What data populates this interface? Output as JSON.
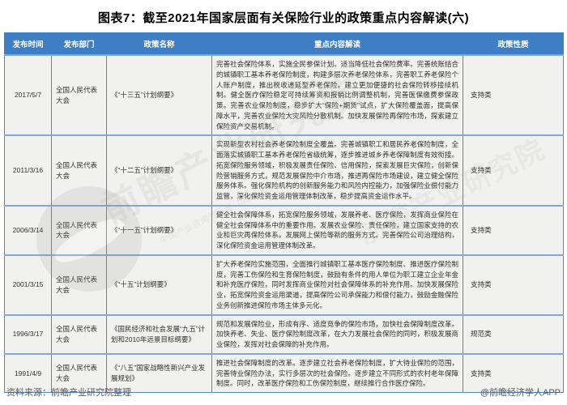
{
  "title": "图表7：截至2021年国家层面有关保险行业的政策重点内容解读(六)",
  "table": {
    "headers": [
      "发布时间",
      "发布部门",
      "政策名称",
      "重点内容解读",
      "政策性质"
    ],
    "rows": [
      {
        "date": "2017/5/7",
        "dept": "全国人民代表大会",
        "policy": "《“十三五”计划纲要》",
        "content": "完善社会保险体系，实施全民参保计划。适当降低社会保险费率。完善统账结合的城镇职工基本养老保险制度，构建多层次养老保险体系，完善职工养老保险个人账户制度，推出税收递延型养老保险。建立更加便捷的社会保险转移接续机制。健全医疗保险稳定可持续筹资和报销比例调整机制，完善医保缴费参保政策。完善农业保险制度，稳步扩大“保险+期货”试点，扩大保险覆盖面，提高保障水平，完善农业保险大灾风险分散机制。加快发展保险再保险市场，探索建立保险资产交易机制。",
        "nature": "支持类"
      },
      {
        "date": "2011/3/16",
        "dept": "全国人民代表大会",
        "policy": "《“十二五”计划纲要》",
        "content": "实现新型农村社会养老保险制度全覆盖。完善城镇职工和居民养老保险制度，全面落实城镇职工基本养老保险省级统筹，逐步推进城乡养老保障制度有效衔接。拓宽保险服务领域，积极发展责任保险、信用保险，探索发展巨灾保险，创新保险营销服务方式，规范发展保险中介市场，推进再保险市场建设，建立健全保险服务体系。强化保险机构的创新服务能力和风险内控能力，加强保险业偿付能力监管，深化保险资金运用管理体制改革，稳步提高资金运作水平。",
        "nature": "支持类"
      },
      {
        "date": "2006/3/14",
        "dept": "全国人民代表大会",
        "policy": "《“十一五”计划纲要》",
        "content": "健全社会保障体系，拓宽保险服务领域，发展养老、医疗保险，发挥商业保险在健全社会保障体系中的重要作用。发展农业保险、责任保险，建立国家支持的农业和巨灾再保险体系。发展网上保险等新的服务方式。完善保险公司治理结构，深化保险资金运用管理体制改革。",
        "nature": "支持类"
      },
      {
        "date": "2001/3/15",
        "dept": "全国人民代表大会",
        "policy": "《“十五”计划纲要》",
        "content": "扩大养老保险实施范围，全面推行城镇职工基本医疗保险制度、推进医疗保险制度，完善工伤保险和生育保险制度，鼓励有条件的用人单位为职工建立企业年金和补充医疗保险，同时发挥商业保险对社会保障体系的补充作用。加快发展保险业，拓宽保险资金运用渠道，提高保险公司承保能力和偿付能力，鼓励金融保险业务创新推进保险市场主体多元化。",
        "nature": "支持类"
      },
      {
        "date": "1996/3/17",
        "dept": "全国人民代表大会",
        "policy": "《国民经济和社会发展“九五”计划和2010年远景目标纲要》",
        "content": "规范和发展保险业，形成有序、适度竞争的保险市场，加快社会保障制度改革。加快养老、失业、医疗保险制度改革，在大力发展社会保险的同时，积极发展商业保险，发挥对社会保障的补充作用。",
        "nature": "规范类"
      },
      {
        "date": "1991/4/9",
        "dept": "全国人民代表大会",
        "policy": "《“八五”国家战略性新兴产业发展规划》",
        "content": "推进社会保障制度的改革。逐步建立社会养老保险制度，扩大待业保险的范围，完善待业保险办法，实行多层次的社会保险。逐步建立不同形式的农村老年保障制度。同时，改革医疗保险和工伤保险制度，继续推行合作医疗保险。",
        "nature": "支持类"
      }
    ]
  },
  "footer": {
    "source": "资料来源：前瞻产业研究院整理",
    "brand": "@前瞻经济学人APP"
  },
  "watermark": {
    "main": "前瞻产业研究院",
    "secondary": "前瞻产业研究院",
    "sub": "中国产业咨询领导者（839599）"
  },
  "colors": {
    "header_bg": "#3e7ec5",
    "border": "#4e86c8",
    "row_bg": "#f1f1ef",
    "footer_text": "#595959"
  }
}
